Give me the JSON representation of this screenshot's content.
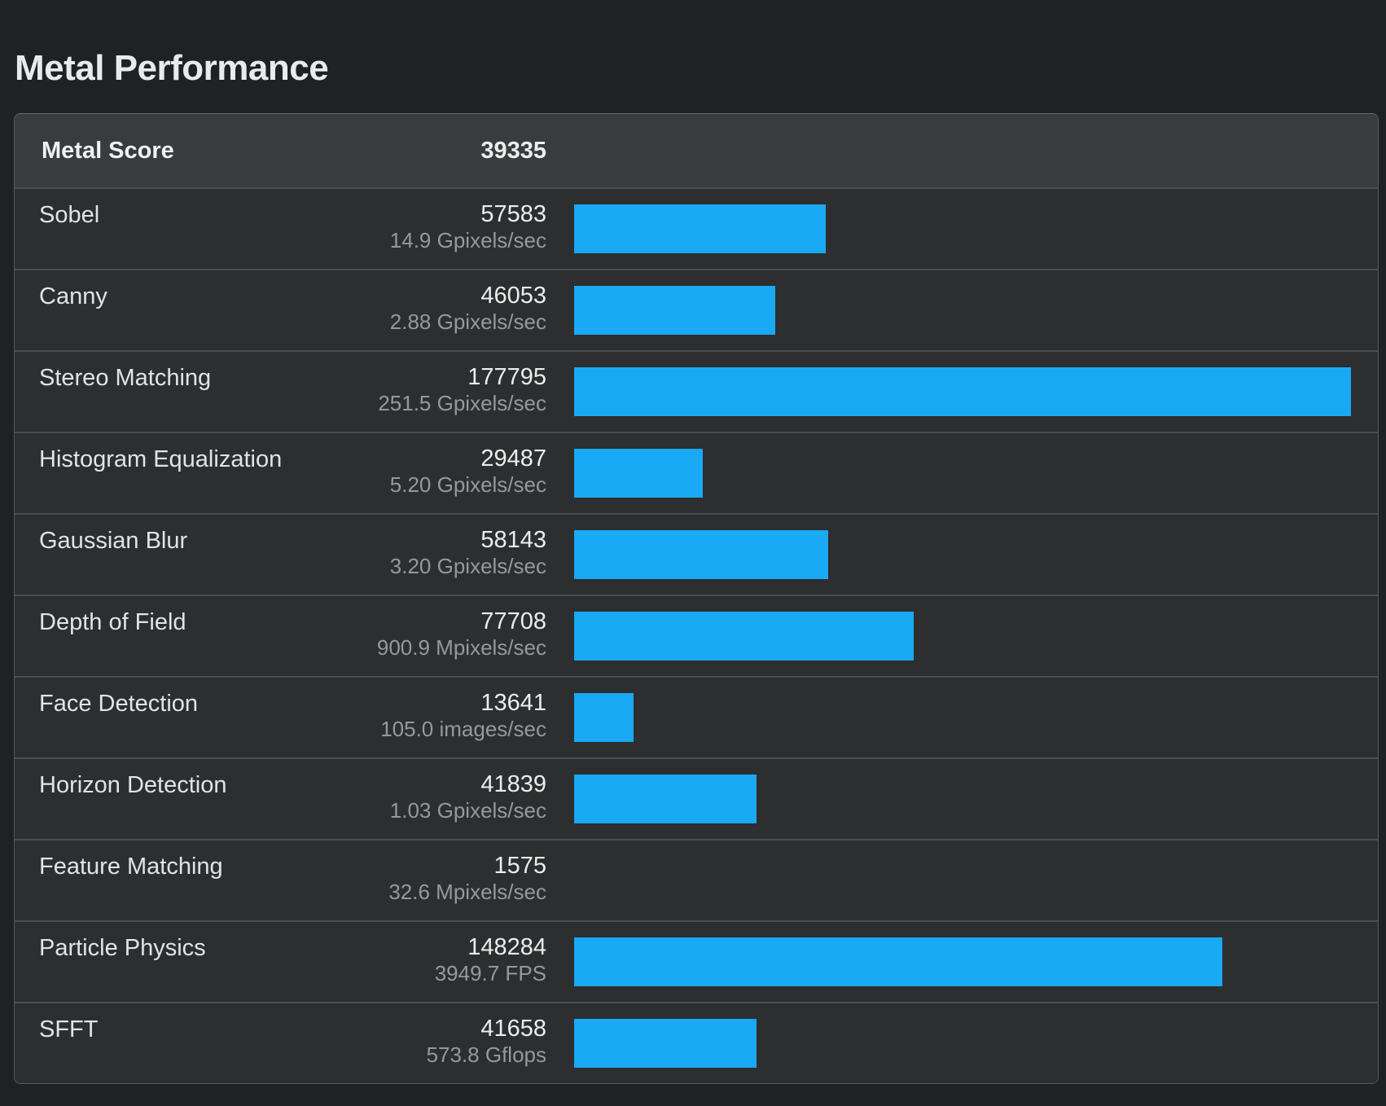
{
  "page_title": "Metal Performance",
  "colors": {
    "bar_accent": "#1aa9f4",
    "page_background": "#1f2124",
    "row_background": "#2c2e2f",
    "header_background": "#3a3b3d"
  },
  "table": {
    "header": {
      "label": "Metal Score",
      "score": "39335"
    },
    "max_score": 177795,
    "rows": [
      {
        "label": "Sobel",
        "score": 57583,
        "rate": "14.9 Gpixels/sec"
      },
      {
        "label": "Canny",
        "score": 46053,
        "rate": "2.88 Gpixels/sec"
      },
      {
        "label": "Stereo Matching",
        "score": 177795,
        "rate": "251.5 Gpixels/sec"
      },
      {
        "label": "Histogram Equalization",
        "score": 29487,
        "rate": "5.20 Gpixels/sec"
      },
      {
        "label": "Gaussian Blur",
        "score": 58143,
        "rate": "3.20 Gpixels/sec"
      },
      {
        "label": "Depth of Field",
        "score": 77708,
        "rate": "900.9 Mpixels/sec"
      },
      {
        "label": "Face Detection",
        "score": 13641,
        "rate": "105.0 images/sec"
      },
      {
        "label": "Horizon Detection",
        "score": 41839,
        "rate": "1.03 Gpixels/sec"
      },
      {
        "label": "Feature Matching",
        "score": 1575,
        "rate": "32.6 Mpixels/sec"
      },
      {
        "label": "Particle Physics",
        "score": 148284,
        "rate": "3949.7 FPS"
      },
      {
        "label": "SFFT",
        "score": 41658,
        "rate": "573.8 Gflops"
      }
    ]
  },
  "chart_data": {
    "type": "bar",
    "orientation": "horizontal",
    "title": "Metal Performance",
    "aggregate": {
      "label": "Metal Score",
      "value": 39335
    },
    "categories": [
      "Sobel",
      "Canny",
      "Stereo Matching",
      "Histogram Equalization",
      "Gaussian Blur",
      "Depth of Field",
      "Face Detection",
      "Horizon Detection",
      "Feature Matching",
      "Particle Physics",
      "SFFT"
    ],
    "values": [
      57583,
      46053,
      177795,
      29487,
      58143,
      77708,
      13641,
      41839,
      1575,
      148284,
      41658
    ],
    "rate_labels": [
      "14.9 Gpixels/sec",
      "2.88 Gpixels/sec",
      "251.5 Gpixels/sec",
      "5.20 Gpixels/sec",
      "3.20 Gpixels/sec",
      "900.9 Mpixels/sec",
      "105.0 images/sec",
      "1.03 Gpixels/sec",
      "32.6 Mpixels/sec",
      "3949.7 FPS",
      "573.8 Gflops"
    ],
    "xlim": [
      0,
      177795
    ],
    "grid": false,
    "legend": false,
    "bar_color": "#1aa9f4"
  }
}
